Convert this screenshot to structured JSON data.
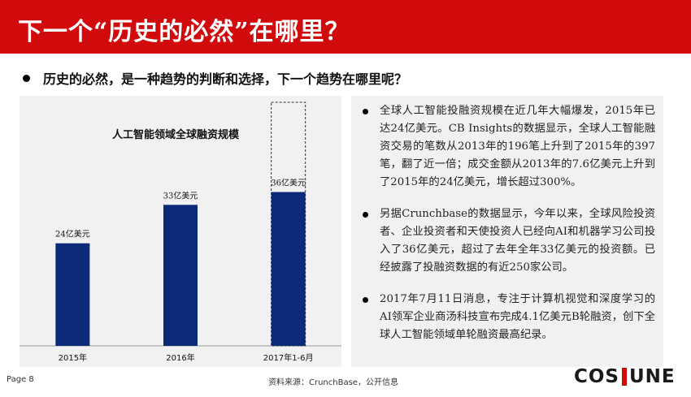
{
  "header": {
    "title": "下一个“历史的必然”在哪里？",
    "bg_color": "#d10a0c"
  },
  "subtitle": "历史的必然，是一种趋势的判断和选择，下一个趋势在哪里呢？",
  "chart_data": {
    "type": "bar",
    "title": "人工智能领域全球融资规模",
    "categories": [
      "2015年",
      "2016年",
      "2017年1-6月"
    ],
    "values": [
      24,
      33,
      36
    ],
    "data_labels": [
      "24亿美元",
      "33亿美元",
      "36亿美元"
    ],
    "bar_color": "#0c2a7a",
    "projection_outline": true,
    "ylim": [
      0,
      57
    ],
    "grid": false,
    "legend": "none"
  },
  "info": {
    "items": [
      "全球人工智能投融资规模在近几年大幅爆发，2015年已达24亿美元。CB Insights的数据显示，全球人工智能融资交易的笔数从2013年的196笔上升到了2015年的397笔，翻了近一倍；成交金额从2013年的7.6亿美元上升到了2015年的24亿美元，增长超过300%。",
      "另据Crunchbase的数据显示，今年以来，全球风险投资者、企业投资者和天使投资人已经向AI和机器学习公司投入了36亿美元，超过了去年全年33亿美元的投资额。已经披露了投融资数据的有近250家公司。",
      "2017年7月11日消息，专注于计算机视觉和深度学习的AI领军企业商汤科技宣布完成4.1亿美元B轮融资，创下全球人工智能领域单轮融资最高纪录。"
    ]
  },
  "footer": {
    "page": "Page  8",
    "source": "资料来源：CrunchBase，公开信息",
    "logo_left": "COS",
    "logo_right": "UNE"
  }
}
